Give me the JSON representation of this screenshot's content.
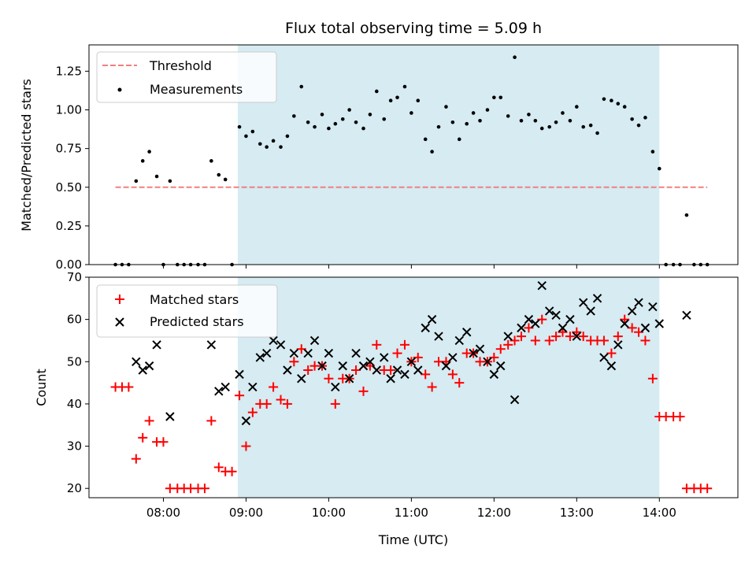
{
  "chart_data": [
    {
      "type": "scatter",
      "title": "Flux total observing time = 5.09 h",
      "xlabel": "",
      "ylabel": "Matched/Predicted stars",
      "xlim": [
        7.1,
        14.95
      ],
      "ylim": [
        0,
        1.42
      ],
      "yticks": [
        0.0,
        0.25,
        0.5,
        0.75,
        1.0,
        1.25
      ],
      "ytick_labels": [
        "0.00",
        "0.25",
        "0.50",
        "0.75",
        "1.00",
        "1.25"
      ],
      "shaded_region": [
        8.9,
        14.0
      ],
      "legend": {
        "location": "upper-left",
        "entries": [
          "Threshold",
          "Measurements"
        ]
      },
      "threshold": {
        "name": "Threshold",
        "value": 0.5,
        "x_range": [
          7.42,
          14.58
        ],
        "color": "#f08080"
      },
      "series": [
        {
          "name": "Measurements",
          "color": "#000000",
          "x": [
            7.42,
            7.5,
            7.58,
            7.67,
            7.75,
            7.83,
            7.92,
            8.0,
            8.08,
            8.17,
            8.25,
            8.33,
            8.42,
            8.5,
            8.58,
            8.67,
            8.75,
            8.83,
            8.92,
            9.0,
            9.08,
            9.17,
            9.25,
            9.33,
            9.42,
            9.5,
            9.58,
            9.67,
            9.75,
            9.83,
            9.92,
            10.0,
            10.08,
            10.17,
            10.25,
            10.33,
            10.42,
            10.5,
            10.58,
            10.67,
            10.75,
            10.83,
            10.92,
            11.0,
            11.08,
            11.17,
            11.25,
            11.33,
            11.42,
            11.5,
            11.58,
            11.67,
            11.75,
            11.83,
            11.92,
            12.0,
            12.08,
            12.17,
            12.25,
            12.33,
            12.42,
            12.5,
            12.58,
            12.67,
            12.75,
            12.83,
            12.92,
            13.0,
            13.08,
            13.17,
            13.25,
            13.33,
            13.42,
            13.5,
            13.58,
            13.67,
            13.75,
            13.83,
            13.92,
            14.0,
            14.08,
            14.17,
            14.25,
            14.33,
            14.42,
            14.5,
            14.58
          ],
          "y": [
            0.0,
            0.0,
            0.0,
            0.54,
            0.67,
            0.73,
            0.57,
            0.0,
            0.54,
            0.0,
            0.0,
            0.0,
            0.0,
            0.0,
            0.67,
            0.58,
            0.55,
            0.0,
            0.89,
            0.83,
            0.86,
            0.78,
            0.76,
            0.8,
            0.76,
            0.83,
            0.96,
            1.15,
            0.92,
            0.89,
            0.97,
            0.88,
            0.91,
            0.94,
            1.0,
            0.92,
            0.88,
            0.97,
            1.12,
            0.94,
            1.06,
            1.08,
            1.15,
            0.98,
            1.06,
            0.81,
            0.73,
            0.89,
            1.02,
            0.92,
            0.81,
            0.91,
            0.98,
            0.93,
            1.0,
            1.08,
            1.08,
            0.96,
            1.34,
            0.93,
            0.97,
            0.93,
            0.88,
            0.89,
            0.92,
            0.98,
            0.93,
            1.02,
            0.89,
            0.9,
            0.85,
            1.07,
            1.06,
            1.04,
            1.02,
            0.94,
            0.9,
            0.95,
            0.73,
            0.62,
            0.0,
            0.0,
            0.0,
            0.32,
            0.0,
            0.0,
            0.0
          ]
        }
      ]
    },
    {
      "type": "scatter",
      "title": "",
      "xlabel": "Time (UTC)",
      "ylabel": "Count",
      "xlim": [
        7.1,
        14.95
      ],
      "ylim": [
        17.8,
        70
      ],
      "yticks": [
        20,
        30,
        40,
        50,
        60,
        70
      ],
      "ytick_labels": [
        "20",
        "30",
        "40",
        "50",
        "60",
        "70"
      ],
      "xticks": [
        8,
        9,
        10,
        11,
        12,
        13,
        14
      ],
      "xtick_labels": [
        "08:00",
        "09:00",
        "10:00",
        "11:00",
        "12:00",
        "13:00",
        "14:00"
      ],
      "shaded_region": [
        8.9,
        14.0
      ],
      "legend": {
        "location": "upper-left",
        "entries": [
          "Matched stars",
          "Predicted stars"
        ]
      },
      "series": [
        {
          "name": "Matched stars",
          "marker": "+",
          "color": "#ff0000",
          "x": [
            7.42,
            7.5,
            7.58,
            7.67,
            7.75,
            7.83,
            7.92,
            8.0,
            8.08,
            8.17,
            8.25,
            8.33,
            8.42,
            8.5,
            8.58,
            8.67,
            8.75,
            8.83,
            8.92,
            9.0,
            9.08,
            9.17,
            9.25,
            9.33,
            9.42,
            9.5,
            9.58,
            9.67,
            9.75,
            9.83,
            9.92,
            10.0,
            10.08,
            10.17,
            10.25,
            10.33,
            10.42,
            10.5,
            10.58,
            10.67,
            10.75,
            10.83,
            10.92,
            11.0,
            11.08,
            11.17,
            11.25,
            11.33,
            11.42,
            11.5,
            11.58,
            11.67,
            11.75,
            11.83,
            11.92,
            12.0,
            12.08,
            12.17,
            12.25,
            12.33,
            12.42,
            12.5,
            12.58,
            12.67,
            12.75,
            12.83,
            12.92,
            13.0,
            13.08,
            13.17,
            13.25,
            13.33,
            13.42,
            13.5,
            13.58,
            13.67,
            13.75,
            13.83,
            13.92,
            14.0,
            14.08,
            14.17,
            14.25,
            14.33,
            14.42,
            14.5,
            14.58
          ],
          "y": [
            44,
            44,
            44,
            27,
            32,
            36,
            31,
            31,
            20,
            20,
            20,
            20,
            20,
            20,
            36,
            25,
            24,
            24,
            42,
            30,
            38,
            40,
            40,
            44,
            41,
            40,
            50,
            53,
            48,
            49,
            49,
            46,
            40,
            46,
            46,
            48,
            43,
            49,
            54,
            48,
            48,
            52,
            54,
            50,
            51,
            47,
            44,
            50,
            50,
            47,
            45,
            52,
            52,
            50,
            50,
            51,
            53,
            54,
            55,
            56,
            58,
            55,
            60,
            55,
            56,
            57,
            56,
            57,
            56,
            55,
            55,
            55,
            52,
            56,
            60,
            58,
            57,
            55,
            46,
            37,
            37,
            37,
            37,
            20,
            20,
            20,
            20
          ]
        },
        {
          "name": "Predicted stars",
          "marker": "x",
          "color": "#000000",
          "x": [
            7.67,
            7.75,
            7.83,
            7.92,
            8.08,
            8.58,
            8.67,
            8.75,
            8.92,
            9.0,
            9.08,
            9.17,
            9.25,
            9.33,
            9.42,
            9.5,
            9.58,
            9.67,
            9.75,
            9.83,
            9.92,
            10.0,
            10.08,
            10.17,
            10.25,
            10.33,
            10.42,
            10.5,
            10.58,
            10.67,
            10.75,
            10.83,
            10.92,
            11.0,
            11.08,
            11.17,
            11.25,
            11.33,
            11.42,
            11.5,
            11.58,
            11.67,
            11.75,
            11.83,
            11.92,
            12.0,
            12.08,
            12.17,
            12.25,
            12.33,
            12.42,
            12.5,
            12.58,
            12.67,
            12.75,
            12.83,
            12.92,
            13.0,
            13.08,
            13.17,
            13.25,
            13.33,
            13.42,
            13.5,
            13.58,
            13.67,
            13.75,
            13.83,
            13.92,
            14.0,
            14.33
          ],
          "y": [
            50,
            48,
            49,
            54,
            37,
            54,
            43,
            44,
            47,
            36,
            44,
            51,
            52,
            55,
            54,
            48,
            52,
            46,
            52,
            55,
            49,
            52,
            44,
            49,
            46,
            52,
            49,
            50,
            48,
            51,
            46,
            48,
            47,
            50,
            48,
            58,
            60,
            56,
            49,
            51,
            55,
            57,
            52,
            53,
            50,
            47,
            49,
            56,
            41,
            58,
            60,
            59,
            68,
            62,
            61,
            58,
            60,
            56,
            64,
            62,
            65,
            51,
            49,
            54,
            59,
            62,
            64,
            58,
            63,
            59,
            61
          ]
        }
      ]
    }
  ]
}
